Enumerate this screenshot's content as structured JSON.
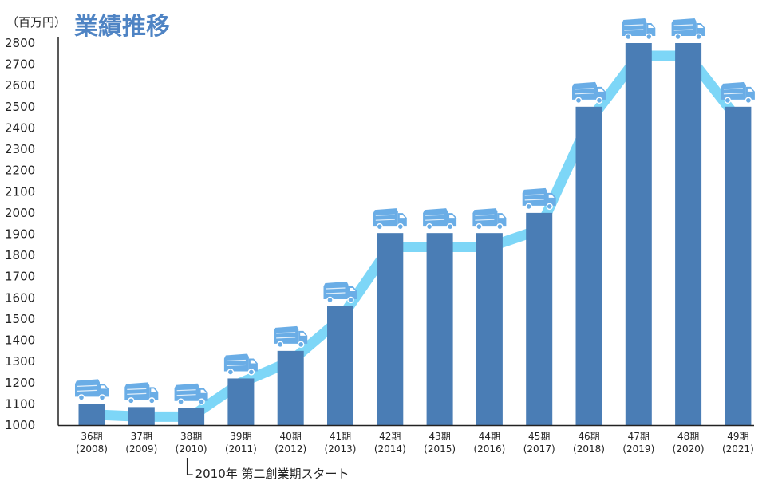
{
  "chart_data": {
    "type": "bar",
    "title": "業績推移",
    "y_unit_label": "（百万円）",
    "ylim": [
      1000,
      2800
    ],
    "y_ticks": [
      1000,
      1100,
      1200,
      1300,
      1400,
      1500,
      1600,
      1700,
      1800,
      1900,
      2000,
      2100,
      2200,
      2300,
      2400,
      2500,
      2600,
      2700,
      2800
    ],
    "categories": [
      {
        "period": "36期",
        "year": "(2008)"
      },
      {
        "period": "37期",
        "year": "(2009)"
      },
      {
        "period": "38期",
        "year": "(2010)"
      },
      {
        "period": "39期",
        "year": "(2011)"
      },
      {
        "period": "40期",
        "year": "(2012)"
      },
      {
        "period": "41期",
        "year": "(2013)"
      },
      {
        "period": "42期",
        "year": "(2014)"
      },
      {
        "period": "43期",
        "year": "(2015)"
      },
      {
        "period": "44期",
        "year": "(2016)"
      },
      {
        "period": "45期",
        "year": "(2017)"
      },
      {
        "period": "46期",
        "year": "(2018)"
      },
      {
        "period": "47期",
        "year": "(2019)"
      },
      {
        "period": "48期",
        "year": "(2020)"
      },
      {
        "period": "49期",
        "year": "(2021)"
      }
    ],
    "values": [
      1100,
      1085,
      1080,
      1220,
      1350,
      1560,
      1905,
      1905,
      1905,
      2000,
      2500,
      2800,
      2800,
      2500
    ],
    "trend_line_values": [
      1050,
      1040,
      1040,
      1200,
      1300,
      1500,
      1840,
      1840,
      1840,
      1920,
      2430,
      2740,
      2740,
      2440
    ],
    "annotation": {
      "text": "2010年 第二創業期スタート",
      "category_index": 2
    },
    "colors": {
      "bar": "#4a7db5",
      "trend_line": "#7dd6f7",
      "truck": "#6aade6",
      "truck_detail": "#ffffff",
      "title": "#4f84c4",
      "axis": "#222222"
    },
    "grid": false,
    "bar_icon": "truck-icon"
  }
}
